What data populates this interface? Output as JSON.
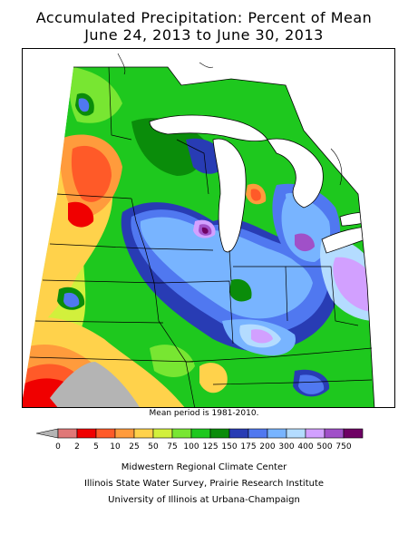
{
  "title": {
    "line1": "Accumulated Precipitation: Percent of Mean",
    "line2": "June 24, 2013 to June 30, 2013"
  },
  "note": "Mean period is 1981-2010.",
  "legend": {
    "labels": [
      "0",
      "2",
      "5",
      "10",
      "25",
      "50",
      "75",
      "100",
      "125",
      "150",
      "175",
      "200",
      "300",
      "400",
      "500",
      "750"
    ],
    "colors": [
      "#b4b4b4",
      "#e07878",
      "#f00000",
      "#ff5a28",
      "#ff9b3c",
      "#ffd24b",
      "#d2f03c",
      "#78e632",
      "#1ec81e",
      "#0a8c0a",
      "#283cb4",
      "#5078f0",
      "#78b4ff",
      "#b4dcff",
      "#d2a0ff",
      "#a050c8",
      "#6e0064"
    ]
  },
  "credits": [
    "Midwestern Regional Climate Center",
    "Illinois State Water Survey, Prairie Research Institute",
    "University of Illinois at Urbana-Champaign"
  ]
}
